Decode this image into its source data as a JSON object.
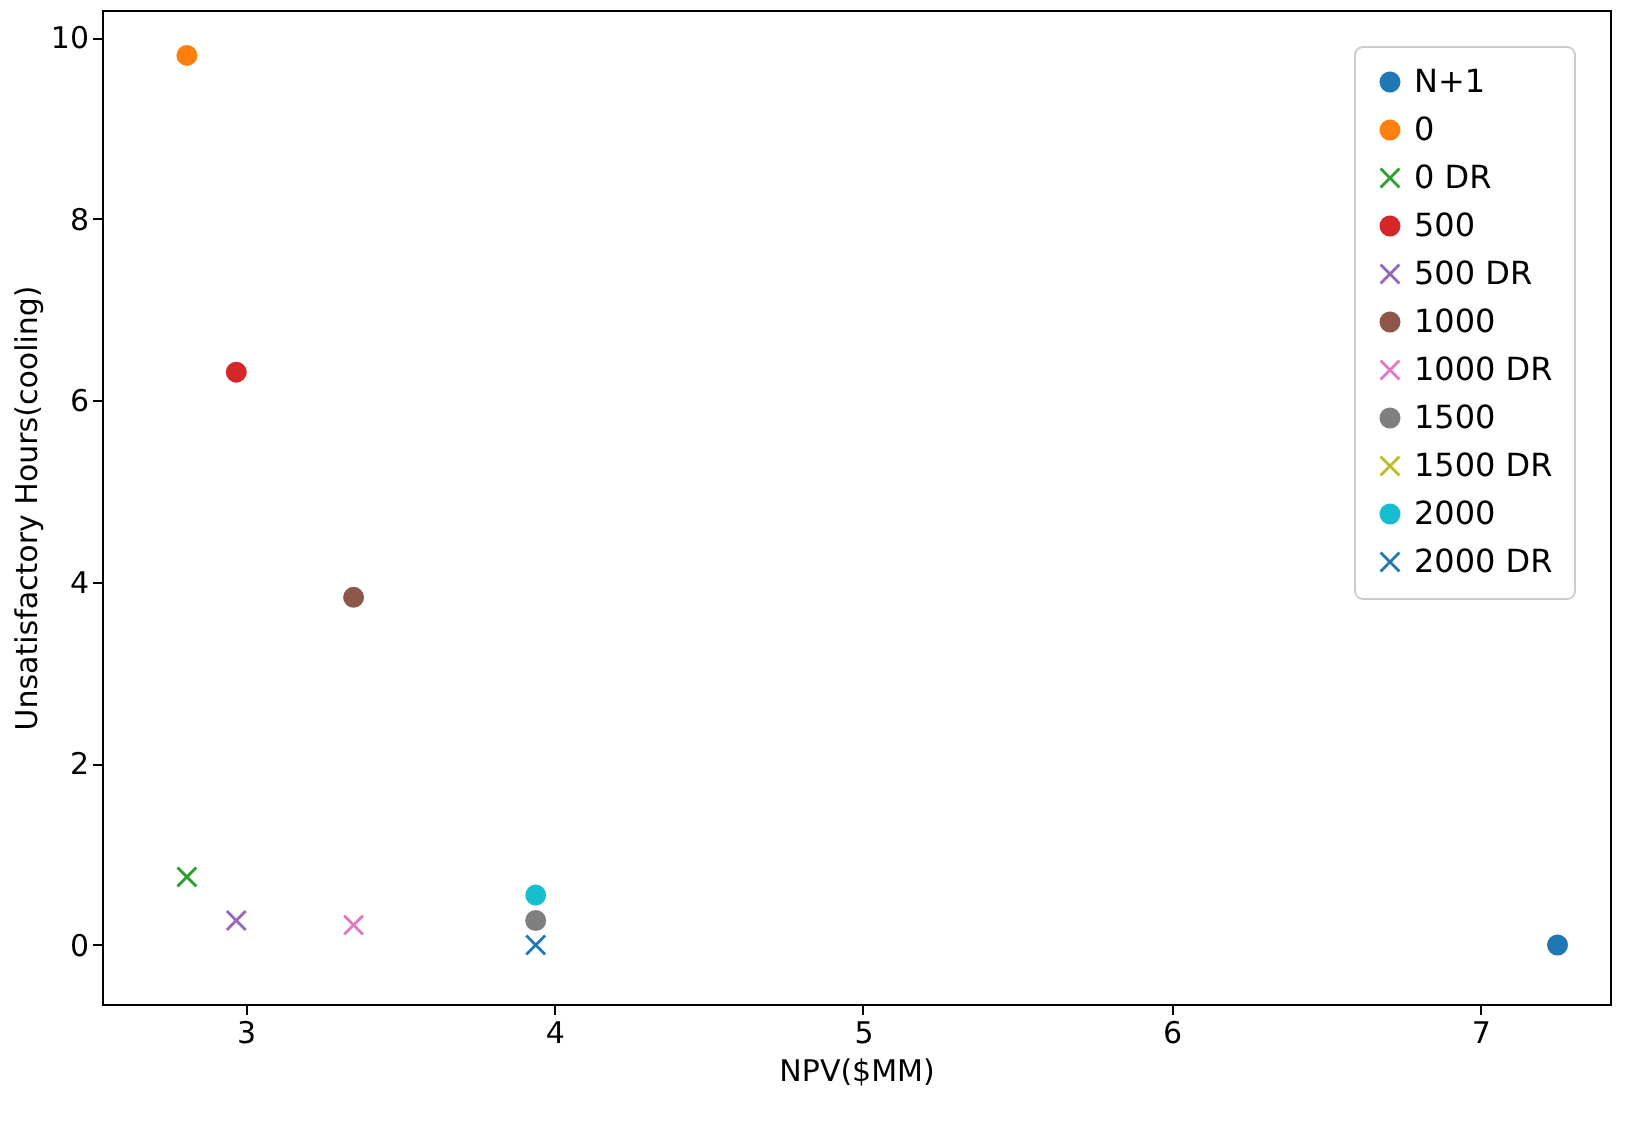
{
  "chart_data": {
    "type": "scatter",
    "xlabel": "NPV($MM)",
    "ylabel": "Unsatisfactory Hours(cooling)",
    "xlim": [
      2.535,
      7.42
    ],
    "ylim": [
      -0.65,
      10.3
    ],
    "xticks": [
      3,
      4,
      5,
      6,
      7
    ],
    "yticks": [
      0,
      2,
      4,
      6,
      8,
      10
    ],
    "grid": false,
    "legend": "top right",
    "series": [
      {
        "name": "N+1",
        "color": "#1f77b4",
        "marker": "circle",
        "x": [
          7.25
        ],
        "values": [
          0
        ]
      },
      {
        "name": "0",
        "color": "#ff7f0e",
        "marker": "circle",
        "x": [
          2.81
        ],
        "values": [
          9.8
        ]
      },
      {
        "name": "0 DR",
        "color": "#2ca02c",
        "marker": "cross",
        "x": [
          2.81
        ],
        "values": [
          0.75
        ]
      },
      {
        "name": "500",
        "color": "#d62728",
        "marker": "circle",
        "x": [
          2.97
        ],
        "values": [
          6.31
        ]
      },
      {
        "name": "500 DR",
        "color": "#9467bd",
        "marker": "cross",
        "x": [
          2.97
        ],
        "values": [
          0.27
        ]
      },
      {
        "name": "1000",
        "color": "#8c564b",
        "marker": "circle",
        "x": [
          3.35
        ],
        "values": [
          3.83
        ]
      },
      {
        "name": "1000 DR",
        "color": "#e377c2",
        "marker": "cross",
        "x": [
          3.35
        ],
        "values": [
          0.22
        ]
      },
      {
        "name": "1500",
        "color": "#7f7f7f",
        "marker": "circle",
        "x": [
          3.94
        ],
        "values": [
          0.27
        ]
      },
      {
        "name": "1500 DR",
        "color": "#bcbd22",
        "marker": "cross",
        "x": [
          null
        ],
        "values": [
          null
        ]
      },
      {
        "name": "2000",
        "color": "#17becf",
        "marker": "circle",
        "x": [
          3.94
        ],
        "values": [
          0.55
        ]
      },
      {
        "name": "2000 DR",
        "color": "#1f77b4",
        "marker": "cross",
        "x": [
          3.94
        ],
        "values": [
          0
        ]
      }
    ]
  }
}
